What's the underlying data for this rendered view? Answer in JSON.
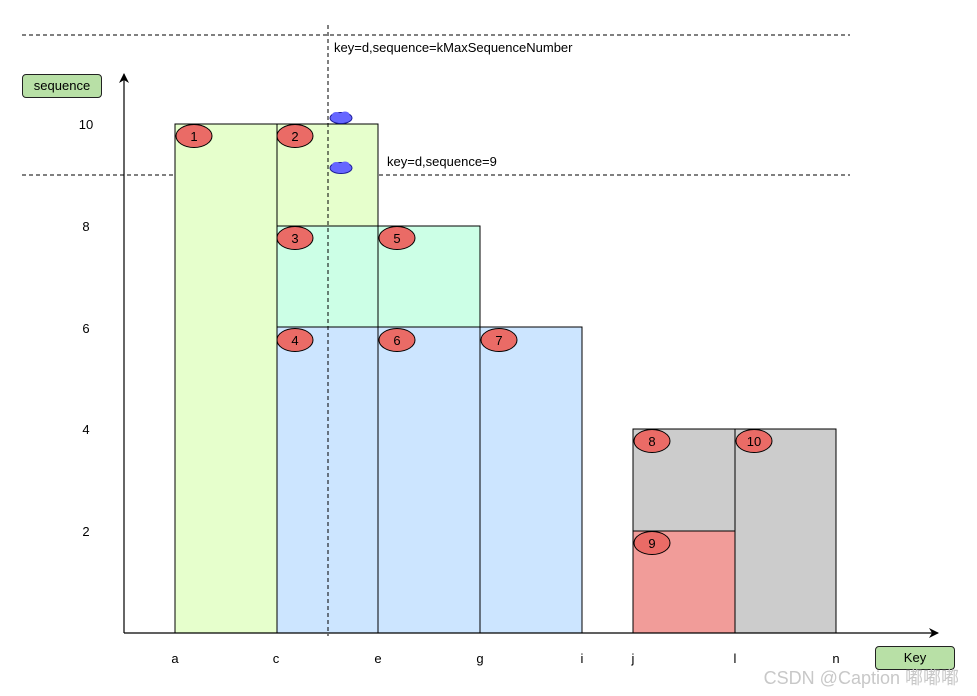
{
  "axes": {
    "y_title": "sequence",
    "x_title": "Key",
    "y_ticks": [
      "10",
      "8",
      "6",
      "4",
      "2"
    ],
    "x_ticks": [
      "a",
      "c",
      "e",
      "g",
      "i",
      "j",
      "l",
      "n"
    ]
  },
  "reference_lines": {
    "top": "key=d,sequence=kMaxSequenceNumber",
    "middle": "key=d,sequence=9"
  },
  "regions": [
    {
      "id": "1",
      "key_start": "a",
      "key_end": "c",
      "seq_max": 10,
      "color": "#e6ffcc"
    },
    {
      "id": "2",
      "key_start": "c",
      "key_end": "e",
      "seq_max": 10,
      "color": "#e6ffcc"
    },
    {
      "id": "3",
      "key_start": "c",
      "key_end": "e",
      "seq_max": 8,
      "color": "#ccffe6"
    },
    {
      "id": "5",
      "key_start": "e",
      "key_end": "g",
      "seq_max": 8,
      "color": "#ccffe6"
    },
    {
      "id": "4",
      "key_start": "c",
      "key_end": "e",
      "seq_max": 6,
      "color": "#cce5ff"
    },
    {
      "id": "6",
      "key_start": "e",
      "key_end": "g",
      "seq_max": 6,
      "color": "#cce5ff"
    },
    {
      "id": "7",
      "key_start": "g",
      "key_end": "i",
      "seq_max": 6,
      "color": "#cce5ff"
    },
    {
      "id": "8",
      "key_start": "j",
      "key_end": "l",
      "seq_max": 4,
      "color": "#cccccc"
    },
    {
      "id": "10",
      "key_start": "l",
      "key_end": "n",
      "seq_max": 4,
      "color": "#cccccc"
    },
    {
      "id": "9",
      "key_start": "j",
      "key_end": "l",
      "seq_max": 2,
      "color": "#f19c99"
    }
  ],
  "colors": {
    "badge_fill": "#ea6b66",
    "marker_fill": "#6666ff",
    "tag_fill": "#b8e0a6"
  },
  "watermark": "CSDN @Caption 嘟嘟嘟"
}
